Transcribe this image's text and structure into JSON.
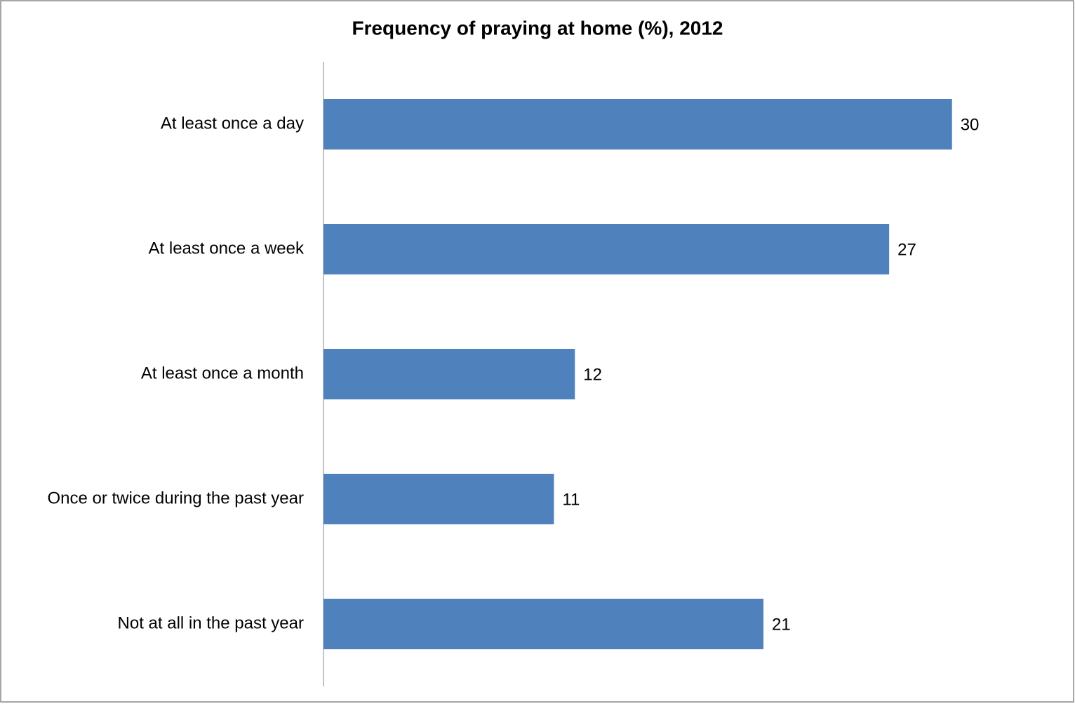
{
  "chart_data": {
    "type": "bar",
    "orientation": "horizontal",
    "title": "Frequency of praying at home (%), 2012",
    "categories": [
      "At least once a day",
      "At least once a week",
      "At least once a month",
      "Once or twice during the past year",
      "Not at all in the past year"
    ],
    "values": [
      30,
      27,
      12,
      11,
      21
    ],
    "color": "#4f81bd",
    "xlim": [
      0,
      35
    ]
  }
}
